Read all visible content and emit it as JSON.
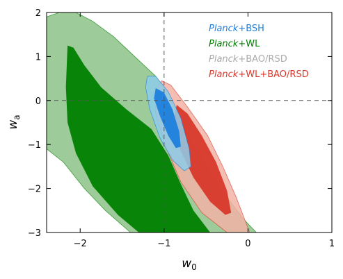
{
  "chart_data": {
    "type": "contour",
    "xlabel_base": "w",
    "xlabel_sub": "0",
    "ylabel_base": "w",
    "ylabel_sub": "a",
    "xlim": [
      -2.4,
      1.0
    ],
    "ylim": [
      -3.0,
      2.0
    ],
    "x_ticks": [
      -2,
      -1,
      0,
      1
    ],
    "y_ticks": [
      -3,
      -2,
      -1,
      0,
      1,
      2
    ],
    "x_tick_labels": [
      "−2",
      "−1",
      "0",
      "1"
    ],
    "y_tick_labels": [
      "−3",
      "−2",
      "−1",
      "0",
      "1",
      "2"
    ],
    "reference_lines": {
      "w0": -1,
      "wa": 0
    },
    "legend_position": "top-right",
    "series": [
      {
        "name_italic": "Planck",
        "name_rest": "+WL",
        "color": "#008000",
        "outer_color": "#9dcb99",
        "contour_95": [
          [
            -2.4,
            1.9
          ],
          [
            -2.25,
            2.0
          ],
          [
            -2.05,
            2.0
          ],
          [
            -1.85,
            1.8
          ],
          [
            -1.6,
            1.45
          ],
          [
            -1.35,
            1.0
          ],
          [
            -1.1,
            0.55
          ],
          [
            -0.95,
            0.15
          ],
          [
            -0.8,
            -0.4
          ],
          [
            -0.65,
            -1.0
          ],
          [
            -0.45,
            -1.6
          ],
          [
            -0.25,
            -2.2
          ],
          [
            -0.05,
            -2.7
          ],
          [
            0.1,
            -3.0
          ],
          [
            -1.4,
            -3.0
          ],
          [
            -1.7,
            -2.5
          ],
          [
            -1.95,
            -2.0
          ],
          [
            -2.2,
            -1.4
          ],
          [
            -2.4,
            -1.1
          ]
        ],
        "contour_68": [
          [
            -2.15,
            1.25
          ],
          [
            -2.08,
            1.2
          ],
          [
            -1.95,
            0.8
          ],
          [
            -1.75,
            0.3
          ],
          [
            -1.45,
            -0.2
          ],
          [
            -1.15,
            -0.65
          ],
          [
            -0.95,
            -1.25
          ],
          [
            -0.8,
            -1.9
          ],
          [
            -0.65,
            -2.5
          ],
          [
            -0.45,
            -3.0
          ],
          [
            -1.3,
            -3.0
          ],
          [
            -1.55,
            -2.6
          ],
          [
            -1.85,
            -1.95
          ],
          [
            -2.05,
            -1.2
          ],
          [
            -2.15,
            -0.5
          ],
          [
            -2.17,
            0.3
          ]
        ]
      },
      {
        "name_italic": "Planck",
        "name_rest": "+WL+BAO/RSD",
        "color": "#d8392b",
        "outer_color": "#f2b3a5",
        "contour_95": [
          [
            -1.03,
            0.45
          ],
          [
            -0.92,
            0.35
          ],
          [
            -0.72,
            -0.15
          ],
          [
            -0.48,
            -0.8
          ],
          [
            -0.3,
            -1.5
          ],
          [
            -0.14,
            -2.2
          ],
          [
            -0.03,
            -2.75
          ],
          [
            0.02,
            -3.0
          ],
          [
            -0.25,
            -3.0
          ],
          [
            -0.55,
            -2.55
          ],
          [
            -0.8,
            -1.85
          ],
          [
            -0.98,
            -1.05
          ],
          [
            -1.1,
            -0.3
          ],
          [
            -1.1,
            0.2
          ]
        ],
        "contour_68": [
          [
            -0.85,
            -0.1
          ],
          [
            -0.72,
            -0.3
          ],
          [
            -0.55,
            -0.8
          ],
          [
            -0.38,
            -1.4
          ],
          [
            -0.25,
            -2.05
          ],
          [
            -0.2,
            -2.55
          ],
          [
            -0.27,
            -2.6
          ],
          [
            -0.45,
            -2.3
          ],
          [
            -0.65,
            -1.75
          ],
          [
            -0.8,
            -1.15
          ],
          [
            -0.9,
            -0.55
          ]
        ]
      },
      {
        "name_italic": "Planck",
        "name_rest": "+BSH",
        "color": "#1e7fdc",
        "outer_color": "#8dcdea",
        "contour_95": [
          [
            -1.2,
            0.55
          ],
          [
            -1.1,
            0.55
          ],
          [
            -0.95,
            0.2
          ],
          [
            -0.8,
            -0.4
          ],
          [
            -0.7,
            -1.1
          ],
          [
            -0.68,
            -1.5
          ],
          [
            -0.76,
            -1.6
          ],
          [
            -0.9,
            -1.35
          ],
          [
            -1.05,
            -0.85
          ],
          [
            -1.17,
            -0.2
          ],
          [
            -1.22,
            0.3
          ]
        ],
        "contour_68": [
          [
            -1.1,
            0.28
          ],
          [
            -1.0,
            0.18
          ],
          [
            -0.9,
            -0.2
          ],
          [
            -0.82,
            -0.7
          ],
          [
            -0.8,
            -1.05
          ],
          [
            -0.86,
            -1.08
          ],
          [
            -0.95,
            -0.8
          ],
          [
            -1.05,
            -0.35
          ],
          [
            -1.12,
            0.05
          ]
        ]
      },
      {
        "name_italic": "Planck",
        "name_rest": "+BAO/RSD",
        "color": "#aaaaaa",
        "outer_color": "#aaaaaa"
      }
    ],
    "legend_order": [
      2,
      0,
      3,
      1
    ]
  }
}
